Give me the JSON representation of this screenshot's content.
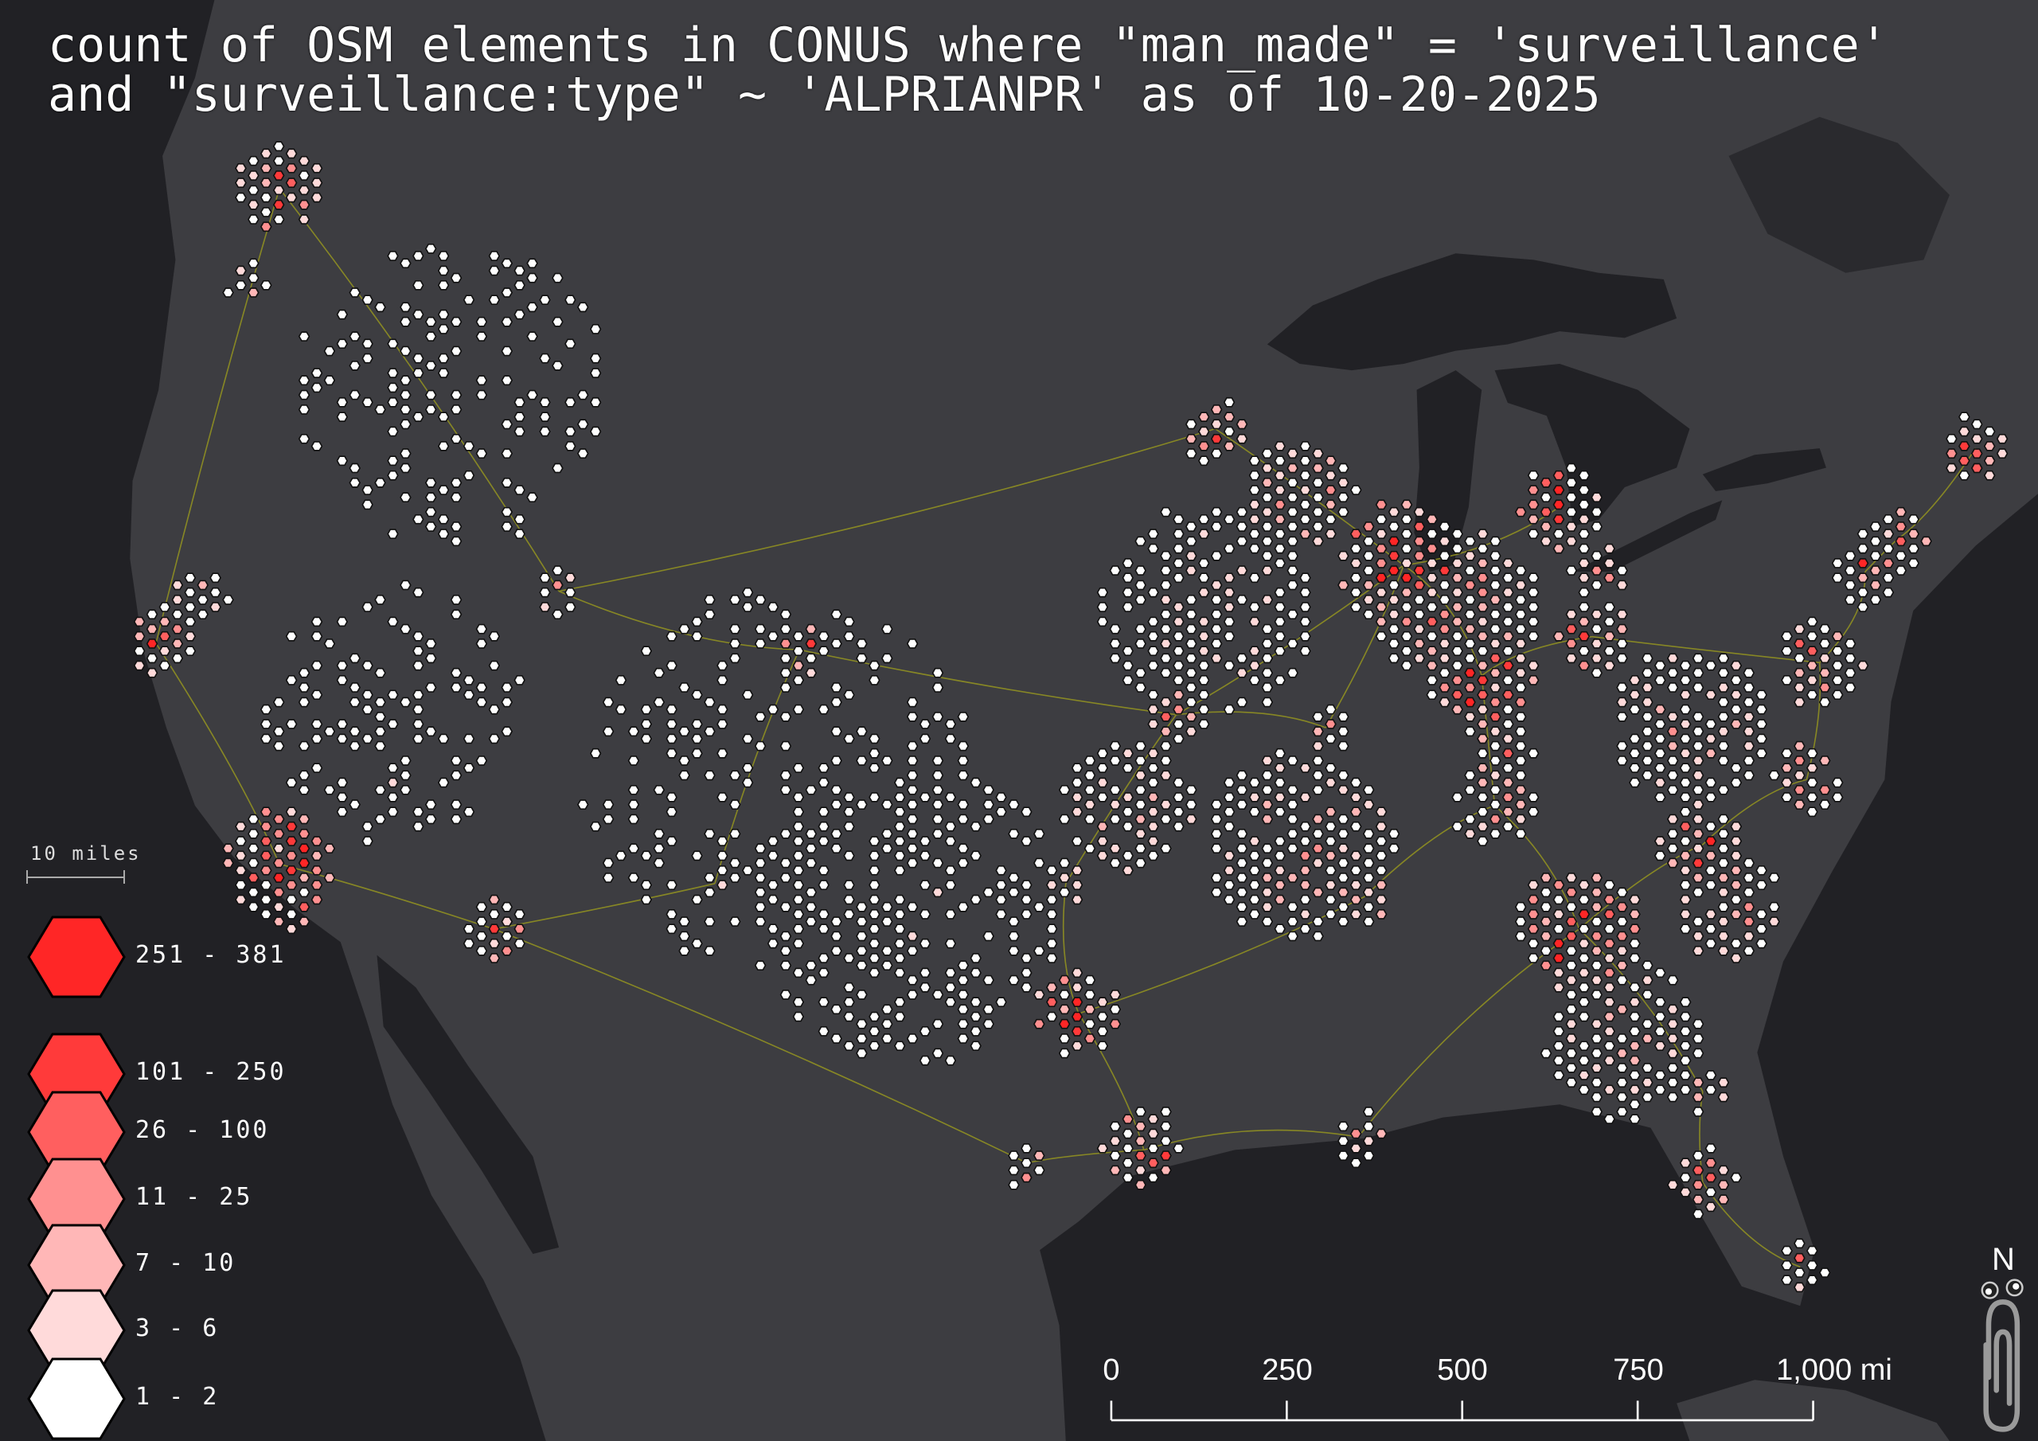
{
  "title": {
    "line1": "count of OSM elements in CONUS where \"man_made\" = 'surveillance'",
    "line2": "and \"surveillance:type\" ~ 'ALPRIANPR' as of 10-20-2025"
  },
  "colors": {
    "ocean": "#212125",
    "land": "#3d3d41",
    "roads": "#9a9a1e",
    "hex_outline": "#111111"
  },
  "legend": {
    "hex_size_label": "10 miles",
    "classes": [
      {
        "label": "251 - 381",
        "color": "#ff2626"
      },
      {
        "label": "101 - 250",
        "color": "#ff3a3a"
      },
      {
        "label": "26 - 100",
        "color": "#ff5f5f"
      },
      {
        "label": "11 - 25",
        "color": "#ff9090"
      },
      {
        "label": "7 - 10",
        "color": "#ffb7b7"
      },
      {
        "label": "3 - 6",
        "color": "#ffdada"
      },
      {
        "label": "1 - 2",
        "color": "#ffffff"
      }
    ]
  },
  "scale_bar": {
    "labels": [
      "0",
      "250",
      "500",
      "750",
      "1,000 mi"
    ]
  },
  "north_arrow": {
    "label": "N",
    "icon": "paperclip-north-arrow-icon"
  }
}
